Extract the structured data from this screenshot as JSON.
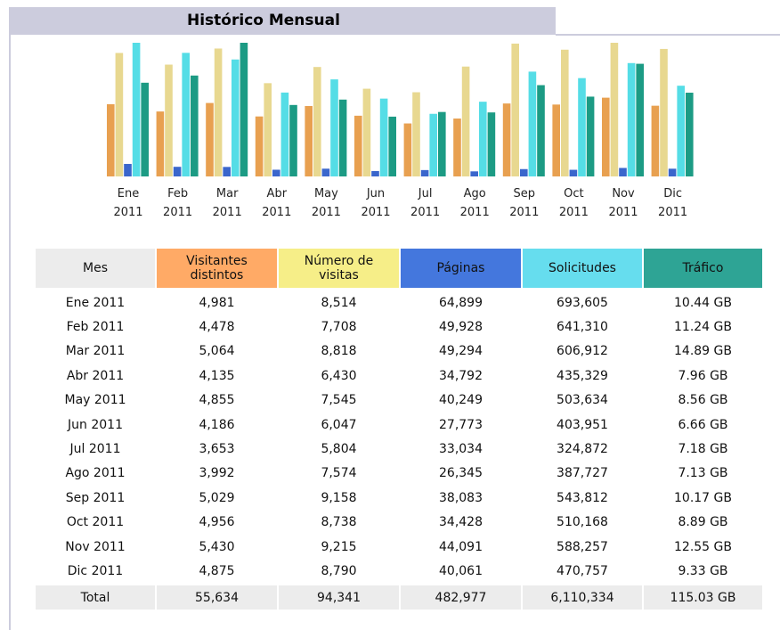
{
  "header": {
    "title": "Histórico Mensual"
  },
  "chart": {
    "colors": [
      "#e8a050",
      "#e8d890",
      "#3a66cc",
      "#55dde6",
      "#1c9b84"
    ],
    "labels": [
      [
        "Ene",
        "2011"
      ],
      [
        "Feb",
        "2011"
      ],
      [
        "Mar",
        "2011"
      ],
      [
        "Abr",
        "2011"
      ],
      [
        "May",
        "2011"
      ],
      [
        "Jun",
        "2011"
      ],
      [
        "Jul",
        "2011"
      ],
      [
        "Ago",
        "2011"
      ],
      [
        "Sep",
        "2011"
      ],
      [
        "Oct",
        "2011"
      ],
      [
        "Nov",
        "2011"
      ],
      [
        "Dic",
        "2011"
      ]
    ]
  },
  "table": {
    "header": [
      "Mes",
      "Visitantes distintos",
      "Número de visitas",
      "Páginas",
      "Solicitudes",
      "Tráfico"
    ],
    "header_colors": [
      "#ececec",
      "#ffaa66",
      "#f6ee88",
      "#4477dd",
      "#66ddee",
      "#2ea495"
    ],
    "rows": [
      [
        "Ene 2011",
        "4,981",
        "8,514",
        "64,899",
        "693,605",
        "10.44 GB"
      ],
      [
        "Feb 2011",
        "4,478",
        "7,708",
        "49,928",
        "641,310",
        "11.24 GB"
      ],
      [
        "Mar 2011",
        "5,064",
        "8,818",
        "49,294",
        "606,912",
        "14.89 GB"
      ],
      [
        "Abr 2011",
        "4,135",
        "6,430",
        "34,792",
        "435,329",
        "7.96 GB"
      ],
      [
        "May 2011",
        "4,855",
        "7,545",
        "40,249",
        "503,634",
        "8.56 GB"
      ],
      [
        "Jun 2011",
        "4,186",
        "6,047",
        "27,773",
        "403,951",
        "6.66 GB"
      ],
      [
        "Jul 2011",
        "3,653",
        "5,804",
        "33,034",
        "324,872",
        "7.18 GB"
      ],
      [
        "Ago 2011",
        "3,992",
        "7,574",
        "26,345",
        "387,727",
        "7.13 GB"
      ],
      [
        "Sep 2011",
        "5,029",
        "9,158",
        "38,083",
        "543,812",
        "10.17 GB"
      ],
      [
        "Oct 2011",
        "4,956",
        "8,738",
        "34,428",
        "510,168",
        "8.89 GB"
      ],
      [
        "Nov 2011",
        "5,430",
        "9,215",
        "44,091",
        "588,257",
        "12.55 GB"
      ],
      [
        "Dic 2011",
        "4,875",
        "8,790",
        "40,061",
        "470,757",
        "9.33 GB"
      ]
    ],
    "total": [
      "Total",
      "55,634",
      "94,341",
      "482,977",
      "6,110,334",
      "115.03 GB"
    ]
  }
}
